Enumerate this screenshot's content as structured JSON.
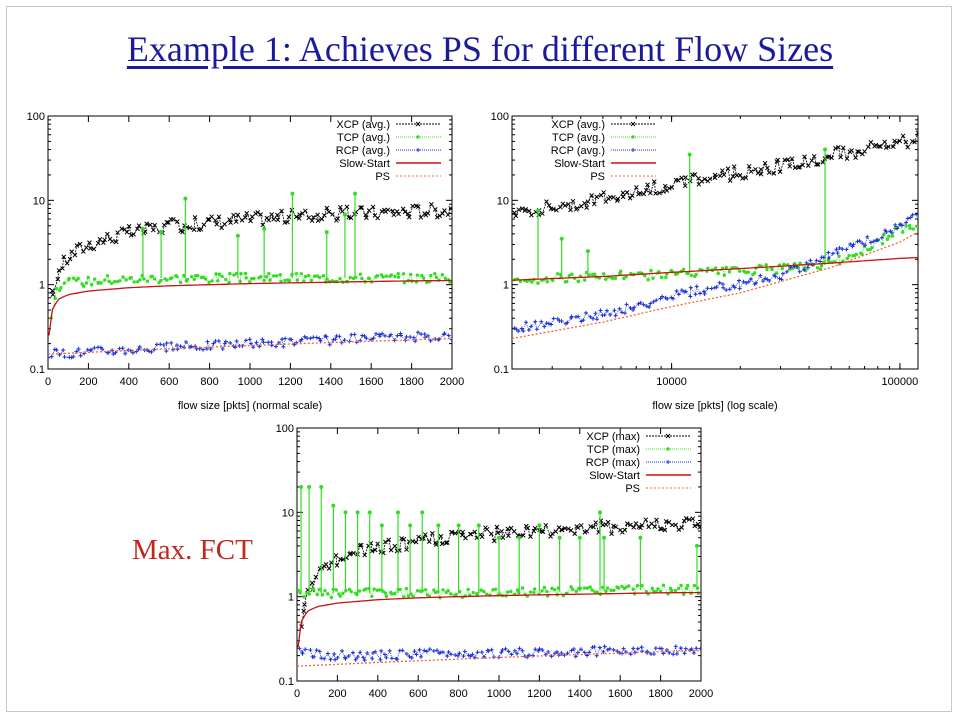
{
  "slide": {
    "title": "Example 1: Achieves PS for different Flow Sizes",
    "callout": "Max. FCT"
  },
  "colors": {
    "title": "#1a1a9a",
    "xcp": "#000000",
    "tcp": "#33dd22",
    "tcp_fill": "#77ee55",
    "rcp": "#1a2fd8",
    "slow_start": "#cc1111",
    "ps": "#ee6633",
    "callout": "#c0281f"
  },
  "chart_data": [
    {
      "type": "scatter",
      "xlabel": "flow size [pkts] (normal scale)",
      "ylabel": "",
      "xscale": "linear",
      "yscale": "log",
      "xlim": [
        0,
        2000
      ],
      "ylim": [
        0.1,
        100
      ],
      "xticks": [
        "0",
        "200",
        "400",
        "600",
        "800",
        "1000",
        "1200",
        "1400",
        "1600",
        "1800",
        "2000"
      ],
      "yticks": [
        "0.1",
        "1",
        "10",
        "100"
      ],
      "legend_position": "top-right",
      "series": [
        {
          "name": "XCP (avg.)",
          "style": "points-dashed",
          "x": [
            10,
            30,
            60,
            100,
            150,
            200,
            300,
            400,
            500,
            600,
            700,
            800,
            900,
            1000,
            1100,
            1200,
            1300,
            1400,
            1500,
            1600,
            1700,
            1800,
            1900,
            2000
          ],
          "y": [
            0.45,
            1.0,
            1.6,
            2.1,
            2.6,
            3.0,
            3.6,
            4.1,
            4.5,
            4.9,
            5.2,
            5.5,
            5.8,
            6.0,
            6.2,
            6.4,
            6.6,
            6.8,
            7.0,
            7.1,
            7.3,
            7.4,
            7.6,
            7.7
          ]
        },
        {
          "name": "TCP (avg.)",
          "style": "points-dotted",
          "x": [
            10,
            50,
            100,
            200,
            300,
            400,
            500,
            600,
            700,
            800,
            900,
            1000,
            1100,
            1200,
            1300,
            1400,
            1500,
            1600,
            1700,
            1800,
            1900,
            2000
          ],
          "y": [
            0.4,
            0.95,
            1.05,
            1.1,
            1.15,
            1.15,
            1.2,
            1.2,
            1.2,
            1.2,
            1.2,
            1.2,
            1.2,
            1.2,
            1.2,
            1.2,
            1.2,
            1.2,
            1.2,
            1.2,
            1.2,
            1.2
          ],
          "spikes": [
            [
              470,
              4.6
            ],
            [
              560,
              4.2
            ],
            [
              680,
              10.5
            ],
            [
              940,
              3.8
            ],
            [
              1070,
              4.6
            ],
            [
              1210,
              12.0
            ],
            [
              1380,
              4.2
            ],
            [
              1470,
              6.8
            ],
            [
              1520,
              12.0
            ]
          ]
        },
        {
          "name": "RCP (avg.)",
          "style": "points-dotted",
          "x": [
            0,
            200,
            400,
            600,
            800,
            1000,
            1200,
            1400,
            1600,
            1800,
            2000
          ],
          "y": [
            0.15,
            0.16,
            0.17,
            0.18,
            0.19,
            0.2,
            0.21,
            0.22,
            0.23,
            0.24,
            0.25
          ]
        },
        {
          "name": "Slow-Start",
          "style": "line",
          "x": [
            5,
            20,
            50,
            100,
            200,
            400,
            600,
            800,
            1000,
            1200,
            1400,
            1600,
            1800,
            2000
          ],
          "y": [
            0.25,
            0.5,
            0.67,
            0.76,
            0.84,
            0.92,
            0.97,
            1.0,
            1.03,
            1.05,
            1.07,
            1.09,
            1.11,
            1.12
          ]
        },
        {
          "name": "PS",
          "style": "dashed",
          "x": [
            0,
            500,
            1000,
            1500,
            2000
          ],
          "y": [
            0.15,
            0.17,
            0.19,
            0.21,
            0.23
          ]
        }
      ]
    },
    {
      "type": "scatter",
      "xlabel": "flow size [pkts] (log scale)",
      "ylabel": "",
      "xscale": "log",
      "yscale": "log",
      "xlim": [
        2000,
        120000
      ],
      "ylim": [
        0.1,
        100
      ],
      "xticks": [
        "10000",
        "100000"
      ],
      "yticks": [
        "0.1",
        "1",
        "10",
        "100"
      ],
      "legend_position": "top-left",
      "series": [
        {
          "name": "XCP (avg.)",
          "style": "points-dashed",
          "x": [
            2000,
            3000,
            4000,
            5000,
            6000,
            8000,
            10000,
            15000,
            20000,
            30000,
            40000,
            50000,
            70000,
            100000,
            120000
          ],
          "y": [
            7.5,
            8.5,
            9.3,
            10.5,
            11.5,
            13.5,
            15.5,
            18.5,
            21.5,
            26.0,
            30.0,
            34.0,
            40.0,
            48.0,
            54.0
          ]
        },
        {
          "name": "TCP (avg.)",
          "style": "points-dotted",
          "x": [
            2000,
            3000,
            5000,
            8000,
            10000,
            20000,
            30000,
            40000,
            50000,
            70000,
            100000,
            120000
          ],
          "y": [
            1.15,
            1.2,
            1.25,
            1.3,
            1.35,
            1.45,
            1.55,
            1.6,
            1.75,
            2.6,
            4.5,
            5.5
          ],
          "spikes": [
            [
              2600,
              7.5
            ],
            [
              3300,
              3.5
            ],
            [
              4300,
              2.5
            ],
            [
              12000,
              35.0
            ],
            [
              47000,
              40.0
            ]
          ]
        },
        {
          "name": "RCP (avg.)",
          "style": "points-dotted",
          "x": [
            2000,
            3000,
            5000,
            8000,
            10000,
            15000,
            20000,
            30000,
            40000,
            50000,
            70000,
            100000,
            120000
          ],
          "y": [
            0.3,
            0.35,
            0.45,
            0.6,
            0.75,
            0.9,
            1.0,
            1.3,
            1.8,
            2.3,
            3.2,
            5.0,
            7.5
          ]
        },
        {
          "name": "Slow-Start",
          "style": "line",
          "x": [
            2000,
            5000,
            10000,
            20000,
            50000,
            100000,
            120000
          ],
          "y": [
            1.13,
            1.25,
            1.4,
            1.55,
            1.8,
            2.05,
            2.1
          ]
        },
        {
          "name": "PS",
          "style": "dashed",
          "x": [
            2000,
            5000,
            10000,
            20000,
            50000,
            100000,
            120000
          ],
          "y": [
            0.23,
            0.36,
            0.55,
            0.8,
            1.6,
            3.2,
            4.2
          ]
        }
      ]
    },
    {
      "type": "scatter",
      "xlabel": "",
      "ylabel": "",
      "xscale": "linear",
      "yscale": "log",
      "xlim": [
        0,
        2000
      ],
      "ylim": [
        0.1,
        100
      ],
      "xticks": [
        "0",
        "200",
        "400",
        "600",
        "800",
        "1000",
        "1200",
        "1400",
        "1600",
        "1800",
        "2000"
      ],
      "yticks": [
        "0.1",
        "1",
        "10",
        "100"
      ],
      "legend_position": "top-right",
      "series": [
        {
          "name": "XCP (max)",
          "style": "points-dashed",
          "x": [
            10,
            50,
            100,
            200,
            300,
            400,
            600,
            800,
            1000,
            1200,
            1400,
            1600,
            1800,
            2000
          ],
          "y": [
            0.25,
            1.1,
            1.8,
            2.8,
            3.3,
            3.8,
            4.5,
            5.1,
            5.6,
            6.0,
            6.4,
            6.8,
            7.1,
            7.4
          ]
        },
        {
          "name": "TCP (max)",
          "style": "points-dotted",
          "x": [
            0,
            100,
            200,
            400,
            600,
            800,
            1000,
            1200,
            1400,
            1600,
            1800,
            2000
          ],
          "y": [
            1.1,
            1.1,
            1.1,
            1.1,
            1.1,
            1.1,
            1.1,
            1.15,
            1.15,
            1.2,
            1.2,
            1.2
          ],
          "spikes": [
            [
              20,
              20.0
            ],
            [
              60,
              20.0
            ],
            [
              120,
              20.0
            ],
            [
              180,
              12.0
            ],
            [
              240,
              10.0
            ],
            [
              300,
              10.0
            ],
            [
              360,
              10.0
            ],
            [
              420,
              7.0
            ],
            [
              500,
              10.0
            ],
            [
              560,
              7.0
            ],
            [
              620,
              10.0
            ],
            [
              700,
              7.0
            ],
            [
              800,
              7.0
            ],
            [
              900,
              7.0
            ],
            [
              1000,
              5.0
            ],
            [
              1100,
              5.0
            ],
            [
              1200,
              7.0
            ],
            [
              1300,
              5.0
            ],
            [
              1400,
              5.0
            ],
            [
              1500,
              10.0
            ],
            [
              1520,
              5.0
            ],
            [
              1700,
              5.0
            ],
            [
              1980,
              4.0
            ]
          ]
        },
        {
          "name": "RCP (max)",
          "style": "points-dotted",
          "x": [
            0,
            200,
            400,
            600,
            800,
            1000,
            1200,
            1400,
            1600,
            1800,
            2000
          ],
          "y": [
            0.22,
            0.2,
            0.2,
            0.21,
            0.21,
            0.21,
            0.22,
            0.22,
            0.23,
            0.23,
            0.24
          ]
        },
        {
          "name": "Slow-Start",
          "style": "line",
          "x": [
            5,
            20,
            50,
            100,
            200,
            400,
            600,
            800,
            1000,
            1200,
            1400,
            1600,
            1800,
            2000
          ],
          "y": [
            0.25,
            0.5,
            0.67,
            0.76,
            0.84,
            0.92,
            0.97,
            1.0,
            1.03,
            1.05,
            1.07,
            1.09,
            1.11,
            1.12
          ]
        },
        {
          "name": "PS",
          "style": "dashed",
          "x": [
            0,
            500,
            1000,
            1500,
            2000
          ],
          "y": [
            0.15,
            0.17,
            0.19,
            0.21,
            0.23
          ]
        }
      ]
    }
  ]
}
